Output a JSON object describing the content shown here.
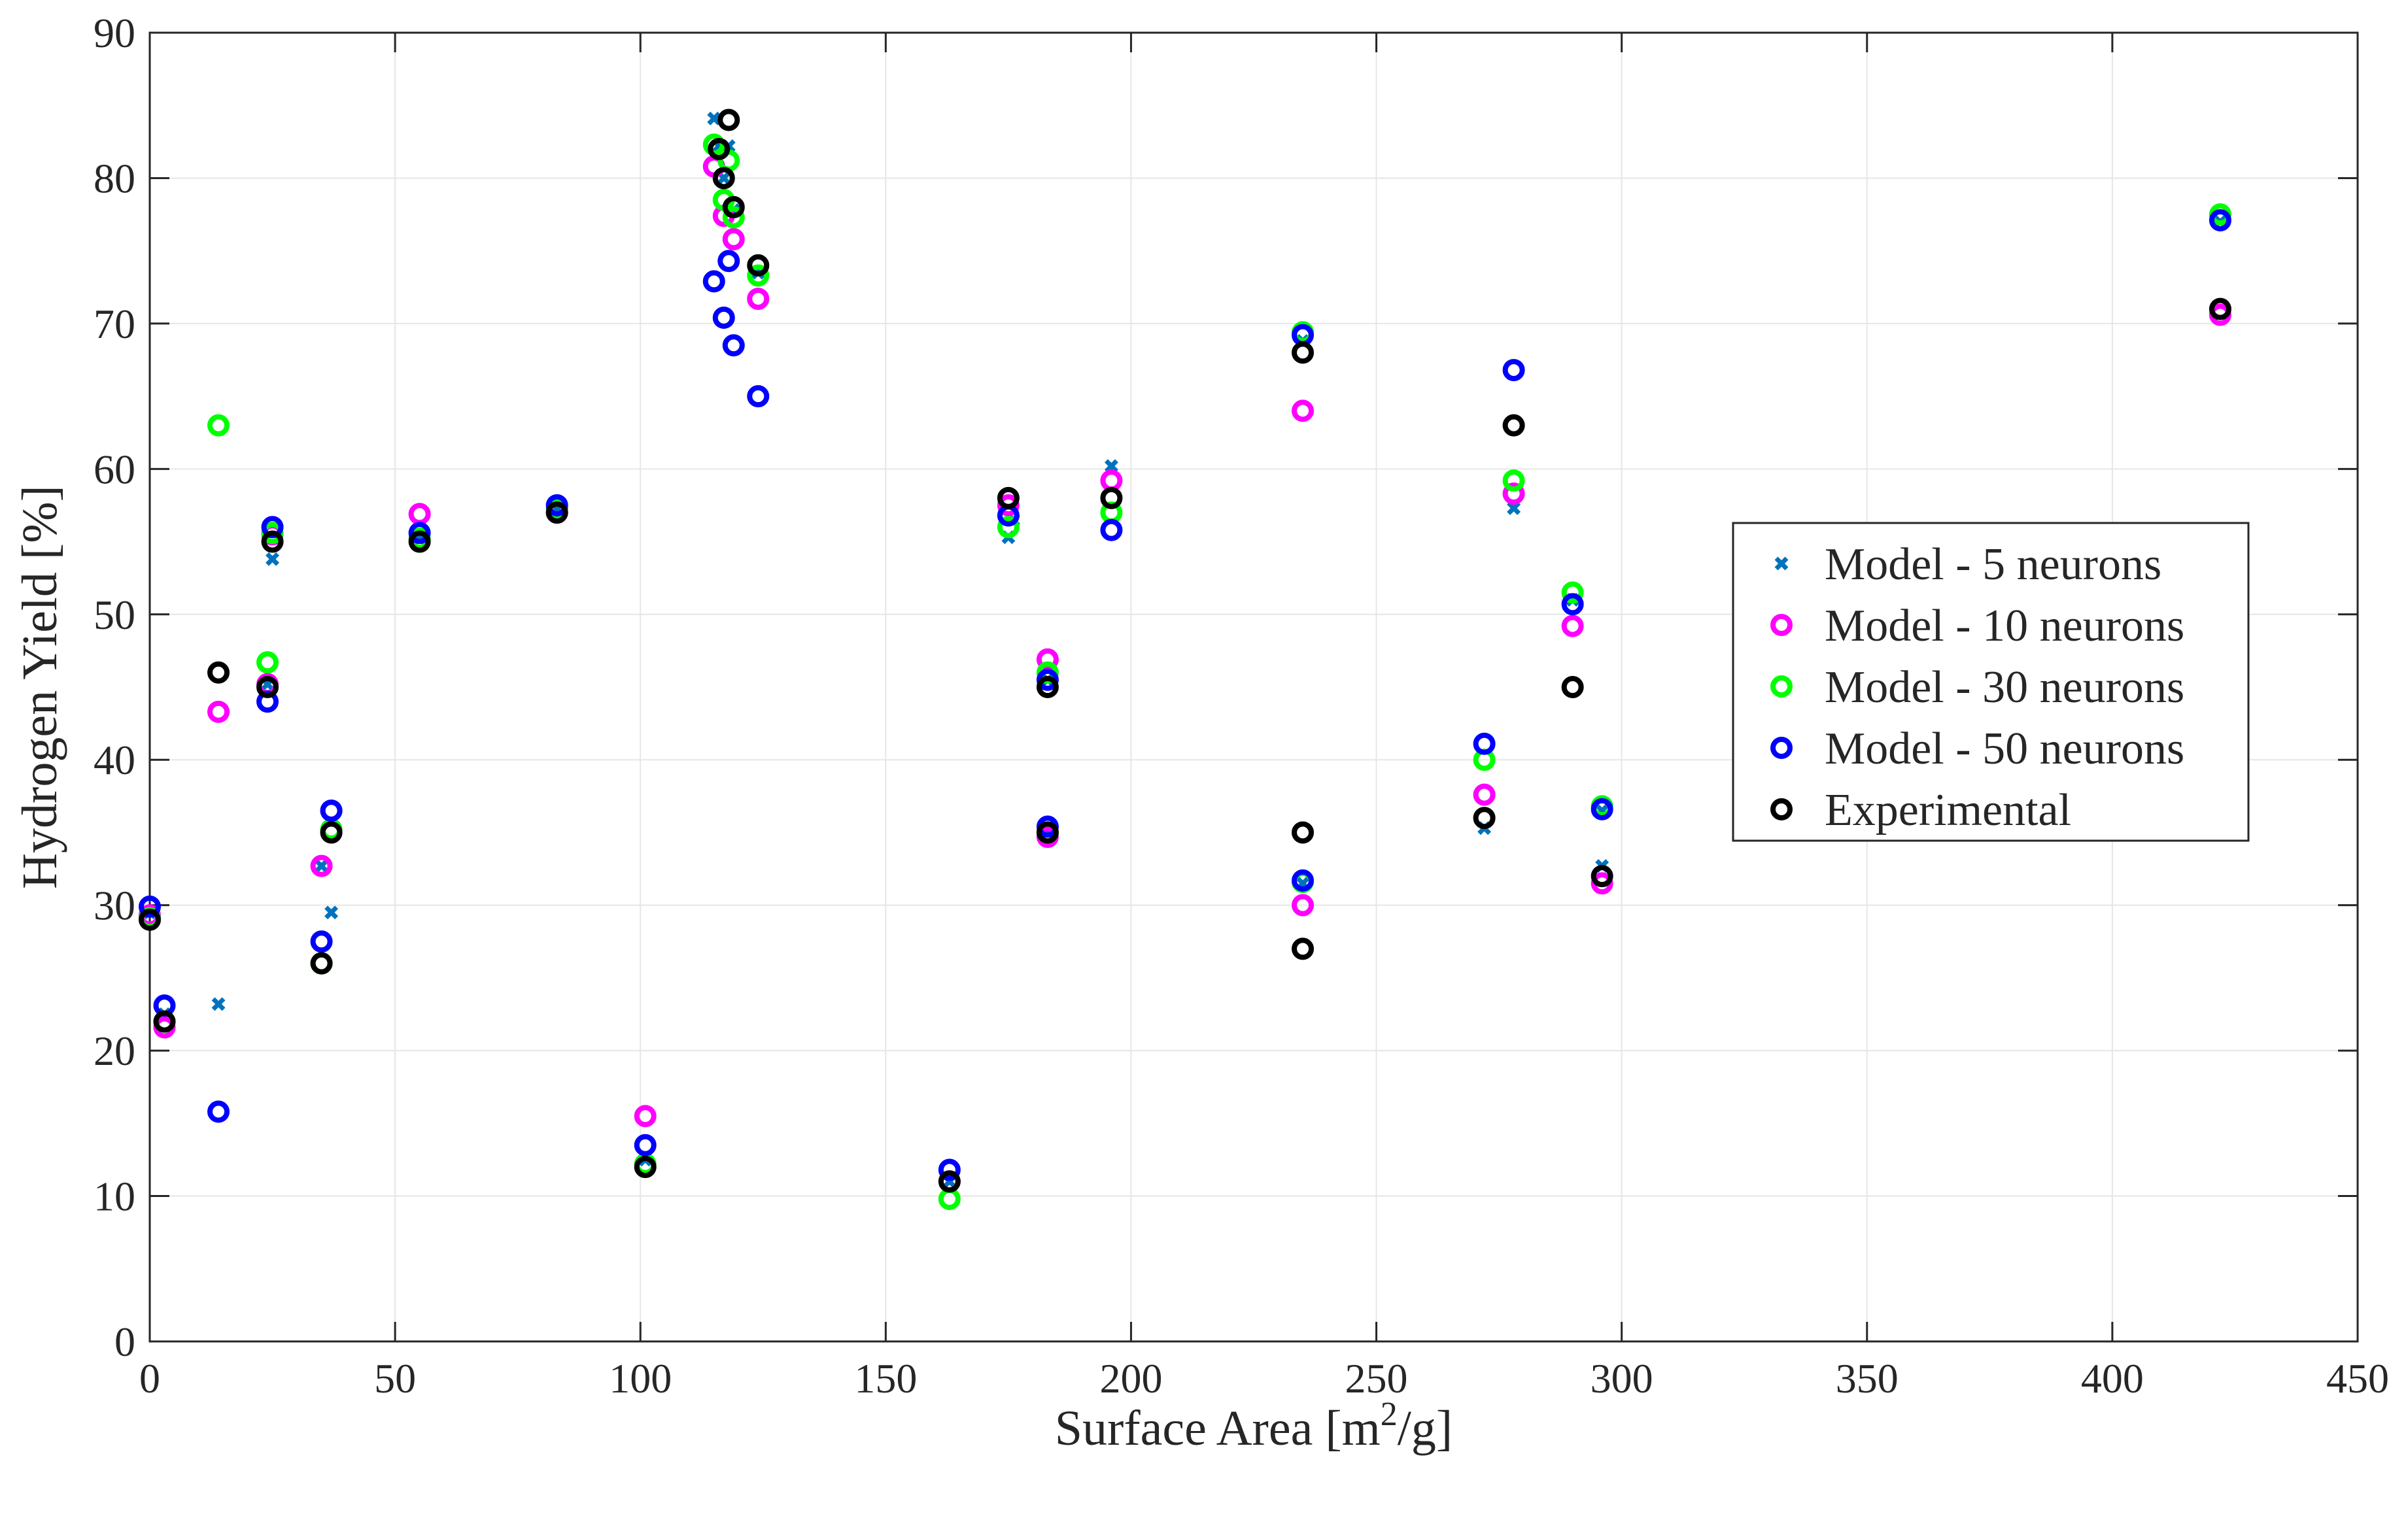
{
  "chart_data": {
    "type": "scatter",
    "title": "",
    "xlabel": "Surface Area [m",
    "xlabel_superscript": "2",
    "xlabel_suffix": "/g]",
    "ylabel": "Hydrogen Yield [%]",
    "xlim": [
      0,
      450
    ],
    "ylim": [
      0,
      90
    ],
    "xticks": [
      0,
      50,
      100,
      150,
      200,
      250,
      300,
      350,
      400,
      450
    ],
    "yticks": [
      0,
      10,
      20,
      30,
      40,
      50,
      60,
      70,
      80,
      90
    ],
    "grid": true,
    "legend_location": "right-center",
    "series": [
      {
        "name": "Model - 5 neurons",
        "marker": "x",
        "color": "#0072BD",
        "points": [
          [
            0,
            29.5
          ],
          [
            3,
            22.5
          ],
          [
            14,
            23.2
          ],
          [
            24,
            45.2
          ],
          [
            25,
            53.8
          ],
          [
            35,
            32.7
          ],
          [
            37,
            29.5
          ],
          [
            55,
            55.2
          ],
          [
            83,
            57.3
          ],
          [
            101,
            12.5
          ],
          [
            115,
            84.1
          ],
          [
            116,
            82.2
          ],
          [
            118,
            82.2
          ],
          [
            117,
            80.0
          ],
          [
            119,
            77.8
          ],
          [
            124,
            73.5
          ],
          [
            163,
            11.0
          ],
          [
            175,
            55.3
          ],
          [
            176,
            56.5
          ],
          [
            183,
            45.5
          ],
          [
            183,
            35.0
          ],
          [
            196,
            60.2
          ],
          [
            235,
            68.8
          ],
          [
            235,
            31.5
          ],
          [
            272,
            35.3
          ],
          [
            278,
            57.3
          ],
          [
            290,
            51.0
          ],
          [
            296,
            32.7
          ],
          [
            296,
            36.5
          ],
          [
            422,
            77.0
          ]
        ]
      },
      {
        "name": "Model - 10 neurons",
        "marker": "o",
        "color": "#FF00FF",
        "points": [
          [
            0,
            29.3
          ],
          [
            3,
            21.6
          ],
          [
            14,
            43.3
          ],
          [
            24,
            45.2
          ],
          [
            25,
            55.5
          ],
          [
            35,
            32.7
          ],
          [
            37,
            36.5
          ],
          [
            55,
            56.9
          ],
          [
            83,
            57.0
          ],
          [
            101,
            15.5
          ],
          [
            115,
            80.8
          ],
          [
            117,
            77.4
          ],
          [
            119,
            75.8
          ],
          [
            124,
            71.7
          ],
          [
            163,
            11.0
          ],
          [
            175,
            57.5
          ],
          [
            183,
            46.9
          ],
          [
            183,
            34.7
          ],
          [
            196,
            59.2
          ],
          [
            235,
            64.0
          ],
          [
            235,
            30.0
          ],
          [
            272,
            37.6
          ],
          [
            278,
            58.3
          ],
          [
            290,
            49.2
          ],
          [
            296,
            31.5
          ],
          [
            422,
            70.6
          ]
        ]
      },
      {
        "name": "Model - 30 neurons",
        "marker": "o",
        "color": "#00FF00",
        "points": [
          [
            0,
            29.1
          ],
          [
            3,
            22.0
          ],
          [
            14,
            63.0
          ],
          [
            24,
            46.7
          ],
          [
            25,
            55.6
          ],
          [
            35,
            26.0
          ],
          [
            37,
            35.2
          ],
          [
            55,
            55.2
          ],
          [
            83,
            57.3
          ],
          [
            101,
            12.2
          ],
          [
            115,
            82.3
          ],
          [
            117,
            78.5
          ],
          [
            118,
            81.2
          ],
          [
            119,
            77.3
          ],
          [
            124,
            73.3
          ],
          [
            163,
            9.8
          ],
          [
            175,
            56.0
          ],
          [
            183,
            46.0
          ],
          [
            183,
            35.0
          ],
          [
            196,
            57.0
          ],
          [
            235,
            69.4
          ],
          [
            235,
            31.6
          ],
          [
            272,
            40.0
          ],
          [
            278,
            59.2
          ],
          [
            290,
            51.5
          ],
          [
            296,
            36.8
          ],
          [
            422,
            77.5
          ]
        ]
      },
      {
        "name": "Model - 50 neurons",
        "marker": "o",
        "color": "#0000FF",
        "points": [
          [
            0,
            29.9
          ],
          [
            3,
            23.1
          ],
          [
            14,
            15.8
          ],
          [
            24,
            44.0
          ],
          [
            25,
            56.0
          ],
          [
            35,
            27.5
          ],
          [
            37,
            36.5
          ],
          [
            55,
            55.6
          ],
          [
            83,
            57.5
          ],
          [
            101,
            13.5
          ],
          [
            115,
            72.9
          ],
          [
            117,
            70.4
          ],
          [
            118,
            74.3
          ],
          [
            119,
            68.5
          ],
          [
            124,
            65.0
          ],
          [
            163,
            11.8
          ],
          [
            175,
            56.8
          ],
          [
            183,
            45.5
          ],
          [
            183,
            35.4
          ],
          [
            196,
            55.8
          ],
          [
            235,
            69.2
          ],
          [
            235,
            31.7
          ],
          [
            272,
            41.1
          ],
          [
            278,
            66.8
          ],
          [
            290,
            50.7
          ],
          [
            296,
            36.6
          ],
          [
            422,
            77.1
          ]
        ]
      },
      {
        "name": "Experimental",
        "marker": "o",
        "color": "#000000",
        "points": [
          [
            0,
            29.0
          ],
          [
            3,
            22.0
          ],
          [
            14,
            46.0
          ],
          [
            24,
            45.0
          ],
          [
            25,
            55.0
          ],
          [
            35,
            26.0
          ],
          [
            37,
            35.0
          ],
          [
            55,
            55.0
          ],
          [
            83,
            57.0
          ],
          [
            101,
            12.0
          ],
          [
            116,
            82.0
          ],
          [
            117,
            80.0
          ],
          [
            118,
            84.0
          ],
          [
            119,
            78.0
          ],
          [
            124,
            74.0
          ],
          [
            163,
            11.0
          ],
          [
            175,
            58.0
          ],
          [
            183,
            45.0
          ],
          [
            183,
            35.0
          ],
          [
            196,
            58.0
          ],
          [
            235,
            68.0
          ],
          [
            235,
            35.0
          ],
          [
            235,
            27.0
          ],
          [
            272,
            36.0
          ],
          [
            278,
            63.0
          ],
          [
            290,
            45.0
          ],
          [
            296,
            32.0
          ],
          [
            422,
            71.0
          ]
        ]
      }
    ]
  }
}
